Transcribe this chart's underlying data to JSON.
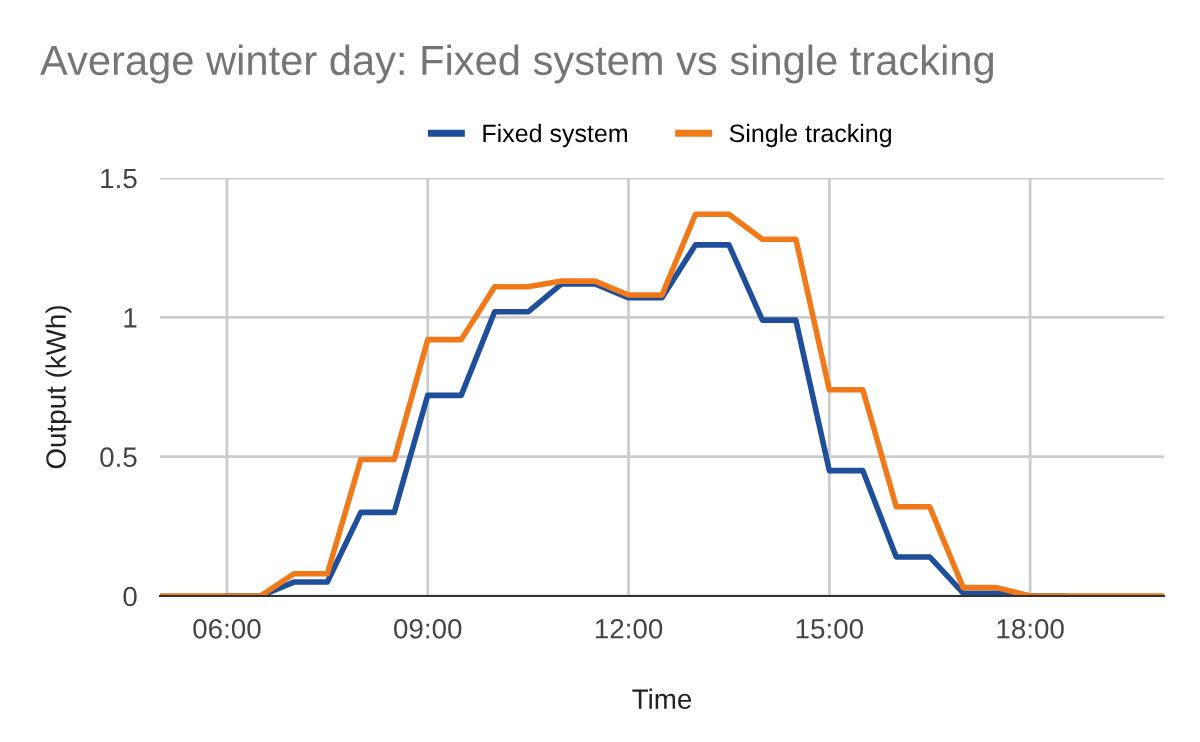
{
  "chart_data": {
    "type": "line",
    "title": "Average winter day: Fixed system vs single tracking",
    "xlabel": "Time",
    "ylabel": "Output (kWh)",
    "x": [
      5,
      5.5,
      6,
      6.5,
      7,
      7.5,
      8,
      8.5,
      9,
      9.5,
      10,
      10.5,
      11,
      11.5,
      12,
      12.5,
      13,
      13.5,
      14,
      14.5,
      15,
      15.5,
      16,
      16.5,
      17,
      17.5,
      18,
      18.5,
      19,
      19.5,
      20
    ],
    "series": [
      {
        "name": "Fixed system",
        "color": "#1f4e9a",
        "values": [
          null,
          null,
          0,
          0,
          0.05,
          0.05,
          0.3,
          0.3,
          0.72,
          0.72,
          1.02,
          1.02,
          1.12,
          1.12,
          1.07,
          1.07,
          1.26,
          1.26,
          0.99,
          0.99,
          0.45,
          0.45,
          0.14,
          0.14,
          0.01,
          0.01,
          0,
          0,
          null,
          null,
          null
        ]
      },
      {
        "name": "Single tracking",
        "color": "#f07a1a",
        "values": [
          0,
          0,
          0,
          0,
          0.08,
          0.08,
          0.49,
          0.49,
          0.92,
          0.92,
          1.11,
          1.11,
          1.13,
          1.13,
          1.08,
          1.08,
          1.37,
          1.37,
          1.28,
          1.28,
          0.74,
          0.74,
          0.32,
          0.32,
          0.03,
          0.03,
          0,
          0,
          0,
          0,
          0
        ]
      }
    ],
    "xlim": [
      5,
      20
    ],
    "xticks": [
      {
        "value": 6,
        "label": "06:00"
      },
      {
        "value": 9,
        "label": "09:00"
      },
      {
        "value": 12,
        "label": "12:00"
      },
      {
        "value": 15,
        "label": "15:00"
      },
      {
        "value": 18,
        "label": "18:00"
      }
    ],
    "ylim": [
      0,
      1.5
    ],
    "yticks": [
      0,
      0.5,
      1,
      1.5
    ],
    "grid": true,
    "legend": "top",
    "line_style": "solid",
    "marker": "none"
  }
}
